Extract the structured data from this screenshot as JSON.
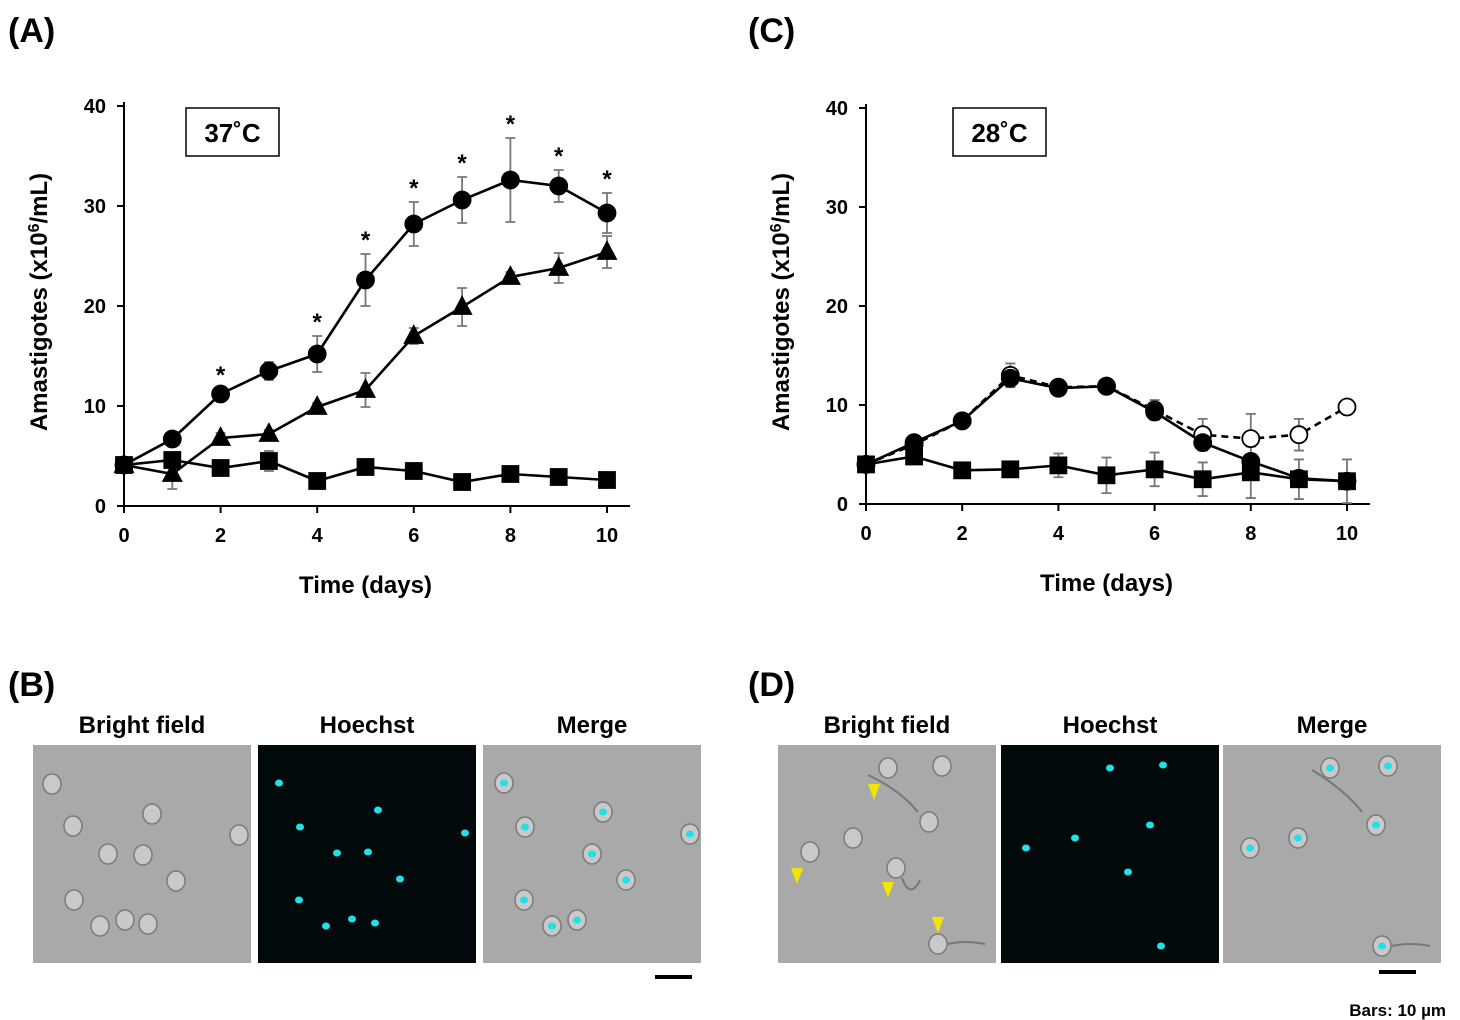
{
  "chart_data": [
    {
      "type": "line",
      "panel_label": "(A)",
      "annotation": "37˚C",
      "ylabel_parts": [
        "Amastigotes (x10",
        "6",
        "/mL)"
      ],
      "xlabel": "Time (days)",
      "x": [
        0,
        1,
        2,
        3,
        4,
        5,
        6,
        7,
        8,
        9,
        10
      ],
      "xlim": [
        0,
        10
      ],
      "xticks": [
        0,
        2,
        4,
        6,
        8,
        10
      ],
      "ylim": [
        0,
        40
      ],
      "yticks": [
        0,
        10,
        20,
        30,
        40
      ],
      "series": [
        {
          "color": "#000000",
          "marker": "circle",
          "filled": true,
          "dash": false,
          "values": [
            4.1,
            6.7,
            11.2,
            13.5,
            15.2,
            22.6,
            28.2,
            30.6,
            32.6,
            32.0,
            29.3
          ],
          "errors": [
            0.3,
            0.4,
            0.5,
            0.9,
            1.8,
            2.6,
            2.2,
            2.3,
            4.2,
            1.6,
            2.0
          ]
        },
        {
          "color": "#000000",
          "marker": "triangle",
          "filled": true,
          "dash": false,
          "values": [
            4.1,
            3.2,
            6.8,
            7.2,
            9.9,
            11.6,
            17.0,
            19.9,
            22.9,
            23.8,
            25.4
          ],
          "errors": [
            0.3,
            1.5,
            0.5,
            0.4,
            0.4,
            1.7,
            0.8,
            1.9,
            0.5,
            1.5,
            1.6
          ]
        },
        {
          "color": "#000000",
          "marker": "square",
          "filled": true,
          "dash": false,
          "values": [
            4.1,
            4.6,
            3.8,
            4.5,
            2.5,
            3.9,
            3.5,
            2.4,
            3.2,
            2.9,
            2.6
          ],
          "errors": [
            0.3,
            0.5,
            0.5,
            1.0,
            0.5,
            0.4,
            0.4,
            0.4,
            0.5,
            0.3,
            0.4
          ]
        }
      ],
      "significance": {
        "label": "*",
        "x": [
          2,
          4,
          5,
          6,
          7,
          8,
          9,
          10
        ]
      }
    },
    {
      "type": "line",
      "panel_label": "(C)",
      "annotation": "28˚C",
      "ylabel_parts": [
        "Amastigotes (x10",
        "6",
        "/mL)"
      ],
      "xlabel": "Time (days)",
      "x": [
        0,
        1,
        2,
        3,
        4,
        5,
        6,
        7,
        8,
        9,
        10
      ],
      "xlim": [
        0,
        10
      ],
      "xticks": [
        0,
        2,
        4,
        6,
        8,
        10
      ],
      "ylim": [
        0,
        40
      ],
      "yticks": [
        0,
        10,
        20,
        30,
        40
      ],
      "series": [
        {
          "color": "#000000",
          "marker": "circle",
          "filled": false,
          "dash": true,
          "values": [
            4.0,
            6.0,
            8.4,
            13.0,
            11.8,
            11.9,
            9.5,
            7.0,
            6.6,
            7.0,
            9.8
          ],
          "errors": [
            0.3,
            0.5,
            0.4,
            1.2,
            0.5,
            0.4,
            1.0,
            1.6,
            2.5,
            1.6,
            0.5
          ]
        },
        {
          "color": "#000000",
          "marker": "circle",
          "filled": true,
          "dash": false,
          "values": [
            4.0,
            6.2,
            8.4,
            12.7,
            11.7,
            11.9,
            9.3,
            6.2,
            4.3,
            2.6,
            2.3
          ],
          "errors": [
            0.3,
            0.5,
            0.4,
            0.8,
            0.4,
            0.4,
            0.6,
            0.5,
            0.5,
            0.5,
            0.5
          ]
        },
        {
          "color": "#000000",
          "marker": "square",
          "filled": true,
          "dash": false,
          "values": [
            4.0,
            4.8,
            3.4,
            3.5,
            3.9,
            2.9,
            3.5,
            2.5,
            3.2,
            2.5,
            2.3
          ],
          "errors": [
            0.3,
            0.6,
            0.4,
            0.5,
            1.2,
            1.8,
            1.7,
            1.7,
            2.6,
            2.0,
            2.2
          ]
        }
      ]
    }
  ],
  "panels": [
    {
      "label": "(B)",
      "images": [
        "Bright field",
        "Hoechst",
        "Merge"
      ]
    },
    {
      "label": "(D)",
      "images": [
        "Bright field",
        "Hoechst",
        "Merge"
      ]
    }
  ],
  "scale_note": "Bars: 10 µm"
}
